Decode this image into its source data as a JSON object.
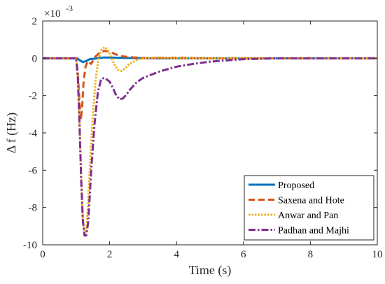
{
  "chart_data": {
    "type": "line",
    "xlabel": "Time (s)",
    "ylabel": "Δ f (Hz)",
    "y_exponent_label": "×10",
    "y_exponent_power": "-3",
    "xlim": [
      0,
      10
    ],
    "ylim": [
      -10,
      2
    ],
    "x_ticks": [
      0,
      2,
      4,
      6,
      8,
      10
    ],
    "y_ticks": [
      -10,
      -8,
      -6,
      -4,
      -2,
      0,
      2
    ],
    "grid": false,
    "legend_position": "bottom-right",
    "series": [
      {
        "name": "Proposed",
        "color": "#0072BD",
        "dash": "solid",
        "width": 3,
        "points": [
          [
            0,
            0
          ],
          [
            1.0,
            0
          ],
          [
            1.05,
            -0.02
          ],
          [
            1.12,
            -0.12
          ],
          [
            1.2,
            -0.2
          ],
          [
            1.3,
            -0.15
          ],
          [
            1.4,
            -0.05
          ],
          [
            1.55,
            -0.02
          ],
          [
            1.8,
            0.04
          ],
          [
            2.0,
            0.04
          ],
          [
            2.4,
            0.02
          ],
          [
            3.0,
            0.01
          ],
          [
            4.0,
            0
          ],
          [
            10,
            0
          ]
        ]
      },
      {
        "name": "Saxena and Hote",
        "color": "#D95319",
        "dash": "9,5",
        "width": 3,
        "points": [
          [
            0,
            0
          ],
          [
            1.0,
            0
          ],
          [
            1.05,
            -0.8
          ],
          [
            1.1,
            -2.3
          ],
          [
            1.14,
            -3.3
          ],
          [
            1.18,
            -2.6
          ],
          [
            1.22,
            -1.3
          ],
          [
            1.28,
            -0.45
          ],
          [
            1.35,
            -0.15
          ],
          [
            1.45,
            -0.3
          ],
          [
            1.55,
            0.05
          ],
          [
            1.7,
            0.3
          ],
          [
            1.85,
            0.4
          ],
          [
            2.0,
            0.35
          ],
          [
            2.2,
            0.2
          ],
          [
            2.4,
            0.1
          ],
          [
            2.7,
            0.05
          ],
          [
            3.2,
            0
          ],
          [
            4.0,
            0.03
          ],
          [
            5.0,
            0
          ],
          [
            10,
            0
          ]
        ]
      },
      {
        "name": "Anwar and Pan",
        "color": "#EDB120",
        "dash": "2.5,2",
        "width": 3,
        "points": [
          [
            0,
            0
          ],
          [
            1.0,
            0
          ],
          [
            1.05,
            -1.0
          ],
          [
            1.1,
            -3.5
          ],
          [
            1.15,
            -6.5
          ],
          [
            1.2,
            -8.6
          ],
          [
            1.25,
            -9.4
          ],
          [
            1.3,
            -9.3
          ],
          [
            1.35,
            -8.0
          ],
          [
            1.42,
            -5.5
          ],
          [
            1.5,
            -3.0
          ],
          [
            1.58,
            -1.2
          ],
          [
            1.66,
            -0.1
          ],
          [
            1.75,
            0.45
          ],
          [
            1.85,
            0.6
          ],
          [
            1.95,
            0.45
          ],
          [
            2.05,
            0.05
          ],
          [
            2.15,
            -0.35
          ],
          [
            2.25,
            -0.62
          ],
          [
            2.35,
            -0.68
          ],
          [
            2.45,
            -0.55
          ],
          [
            2.6,
            -0.3
          ],
          [
            2.8,
            -0.1
          ],
          [
            3.0,
            0
          ],
          [
            3.5,
            0.05
          ],
          [
            4.0,
            0
          ],
          [
            10,
            0
          ]
        ]
      },
      {
        "name": "Padhan and Majhi",
        "color": "#7E2F8E",
        "dash": "10,3,2.5,3",
        "width": 3,
        "points": [
          [
            0,
            0
          ],
          [
            1.0,
            0
          ],
          [
            1.05,
            -1.0
          ],
          [
            1.1,
            -3.5
          ],
          [
            1.15,
            -6.5
          ],
          [
            1.2,
            -8.7
          ],
          [
            1.25,
            -9.5
          ],
          [
            1.3,
            -9.5
          ],
          [
            1.36,
            -8.8
          ],
          [
            1.45,
            -6.0
          ],
          [
            1.55,
            -3.5
          ],
          [
            1.65,
            -1.8
          ],
          [
            1.75,
            -1.1
          ],
          [
            1.85,
            -1.05
          ],
          [
            2.0,
            -1.25
          ],
          [
            2.1,
            -1.6
          ],
          [
            2.2,
            -2.0
          ],
          [
            2.3,
            -2.2
          ],
          [
            2.4,
            -2.15
          ],
          [
            2.5,
            -1.95
          ],
          [
            2.6,
            -1.7
          ],
          [
            2.8,
            -1.3
          ],
          [
            3.0,
            -1.05
          ],
          [
            3.5,
            -0.7
          ],
          [
            4.0,
            -0.45
          ],
          [
            4.5,
            -0.3
          ],
          [
            5.0,
            -0.18
          ],
          [
            6.0,
            -0.05
          ],
          [
            7.0,
            0
          ],
          [
            10,
            0
          ]
        ]
      }
    ]
  }
}
